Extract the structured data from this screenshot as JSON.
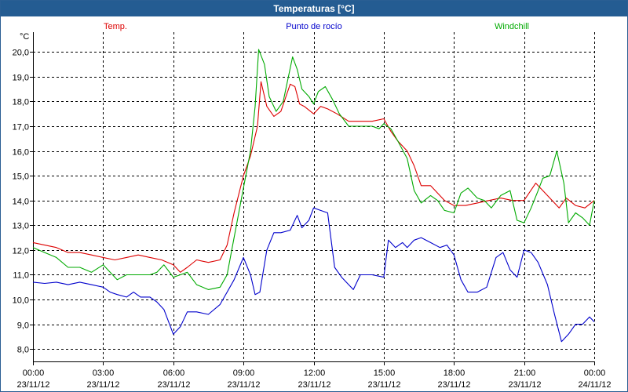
{
  "window": {
    "title": "Temperaturas [°C]"
  },
  "chart_data": {
    "type": "line",
    "title": "Temperaturas [°C]",
    "ylabel": "°C",
    "ylim": [
      7.5,
      20.8
    ],
    "xlim": [
      0,
      24
    ],
    "grid": true,
    "legend_position": "top",
    "y_ticks": [
      {
        "value": 8,
        "label": "8,0"
      },
      {
        "value": 9,
        "label": "9,0"
      },
      {
        "value": 10,
        "label": "10,0"
      },
      {
        "value": 11,
        "label": "11,0"
      },
      {
        "value": 12,
        "label": "12,0"
      },
      {
        "value": 13,
        "label": "13,0"
      },
      {
        "value": 14,
        "label": "14,0"
      },
      {
        "value": 15,
        "label": "15,0"
      },
      {
        "value": 16,
        "label": "16,0"
      },
      {
        "value": 17,
        "label": "17,0"
      },
      {
        "value": 18,
        "label": "18,0"
      },
      {
        "value": 19,
        "label": "19,0"
      },
      {
        "value": 20,
        "label": "20,0"
      }
    ],
    "x_ticks": [
      {
        "value": 0,
        "time": "00:00",
        "date": "23/11/12"
      },
      {
        "value": 3,
        "time": "03:00",
        "date": "23/11/12"
      },
      {
        "value": 6,
        "time": "06:00",
        "date": "23/11/12"
      },
      {
        "value": 9,
        "time": "09:00",
        "date": "23/11/12"
      },
      {
        "value": 12,
        "time": "12:00",
        "date": "23/11/12"
      },
      {
        "value": 15,
        "time": "15:00",
        "date": "23/11/12"
      },
      {
        "value": 18,
        "time": "18:00",
        "date": "23/11/12"
      },
      {
        "value": 21,
        "time": "21:00",
        "date": "23/11/12"
      },
      {
        "value": 24,
        "time": "00:00",
        "date": "24/11/12"
      }
    ],
    "series": [
      {
        "name": "Temp.",
        "color": "#dd0000",
        "points": [
          [
            0,
            12.3
          ],
          [
            0.5,
            12.2
          ],
          [
            1,
            12.1
          ],
          [
            1.5,
            11.9
          ],
          [
            2,
            11.9
          ],
          [
            2.5,
            11.8
          ],
          [
            3,
            11.7
          ],
          [
            3.5,
            11.6
          ],
          [
            4,
            11.7
          ],
          [
            4.5,
            11.8
          ],
          [
            5,
            11.7
          ],
          [
            5.5,
            11.6
          ],
          [
            6,
            11.4
          ],
          [
            6.3,
            11.1
          ],
          [
            6.6,
            11.3
          ],
          [
            7,
            11.6
          ],
          [
            7.5,
            11.5
          ],
          [
            8,
            11.6
          ],
          [
            8.3,
            12.2
          ],
          [
            8.6,
            13.5
          ],
          [
            9,
            15.0
          ],
          [
            9.3,
            15.8
          ],
          [
            9.6,
            17.0
          ],
          [
            9.75,
            18.8
          ],
          [
            10,
            17.8
          ],
          [
            10.3,
            17.4
          ],
          [
            10.6,
            17.6
          ],
          [
            11,
            18.7
          ],
          [
            11.2,
            18.6
          ],
          [
            11.4,
            17.9
          ],
          [
            11.6,
            17.8
          ],
          [
            12,
            17.5
          ],
          [
            12.3,
            17.8
          ],
          [
            12.6,
            17.7
          ],
          [
            13,
            17.5
          ],
          [
            13.5,
            17.2
          ],
          [
            14,
            17.2
          ],
          [
            14.5,
            17.2
          ],
          [
            15,
            17.3
          ],
          [
            15.3,
            16.8
          ],
          [
            15.6,
            16.4
          ],
          [
            16,
            16.0
          ],
          [
            16.3,
            15.4
          ],
          [
            16.6,
            14.6
          ],
          [
            17,
            14.6
          ],
          [
            17.3,
            14.3
          ],
          [
            17.6,
            14.0
          ],
          [
            18,
            13.8
          ],
          [
            18.5,
            13.8
          ],
          [
            19,
            13.9
          ],
          [
            19.5,
            14.0
          ],
          [
            20,
            14.1
          ],
          [
            20.5,
            14.0
          ],
          [
            21,
            14.0
          ],
          [
            21.5,
            14.7
          ],
          [
            22,
            14.2
          ],
          [
            22.5,
            13.7
          ],
          [
            22.8,
            14.1
          ],
          [
            23.2,
            13.8
          ],
          [
            23.6,
            13.7
          ],
          [
            24,
            14.0
          ]
        ]
      },
      {
        "name": "Punto de rocío",
        "color": "#0000cc",
        "points": [
          [
            0,
            10.7
          ],
          [
            0.5,
            10.65
          ],
          [
            1,
            10.7
          ],
          [
            1.5,
            10.6
          ],
          [
            2,
            10.7
          ],
          [
            2.5,
            10.6
          ],
          [
            3,
            10.5
          ],
          [
            3.3,
            10.3
          ],
          [
            3.6,
            10.2
          ],
          [
            4,
            10.1
          ],
          [
            4.3,
            10.3
          ],
          [
            4.6,
            10.1
          ],
          [
            5,
            10.1
          ],
          [
            5.3,
            9.9
          ],
          [
            5.6,
            9.6
          ],
          [
            6,
            8.6
          ],
          [
            6.3,
            8.9
          ],
          [
            6.6,
            9.5
          ],
          [
            7,
            9.5
          ],
          [
            7.5,
            9.4
          ],
          [
            8,
            9.8
          ],
          [
            8.3,
            10.3
          ],
          [
            8.6,
            10.8
          ],
          [
            9,
            11.7
          ],
          [
            9.3,
            11.0
          ],
          [
            9.5,
            10.2
          ],
          [
            9.7,
            10.3
          ],
          [
            10,
            12.0
          ],
          [
            10.3,
            12.7
          ],
          [
            10.6,
            12.7
          ],
          [
            11,
            12.8
          ],
          [
            11.3,
            13.4
          ],
          [
            11.5,
            12.9
          ],
          [
            11.8,
            13.2
          ],
          [
            12,
            13.7
          ],
          [
            12.3,
            13.6
          ],
          [
            12.6,
            13.5
          ],
          [
            12.9,
            11.3
          ],
          [
            13.2,
            10.9
          ],
          [
            13.5,
            10.6
          ],
          [
            13.7,
            10.4
          ],
          [
            14,
            11.0
          ],
          [
            14.5,
            11.0
          ],
          [
            15,
            10.9
          ],
          [
            15.2,
            12.4
          ],
          [
            15.5,
            12.1
          ],
          [
            15.8,
            12.3
          ],
          [
            16,
            12.1
          ],
          [
            16.3,
            12.4
          ],
          [
            16.6,
            12.5
          ],
          [
            17,
            12.3
          ],
          [
            17.4,
            12.1
          ],
          [
            17.7,
            12.2
          ],
          [
            18,
            11.8
          ],
          [
            18.3,
            10.8
          ],
          [
            18.6,
            10.3
          ],
          [
            19,
            10.3
          ],
          [
            19.4,
            10.5
          ],
          [
            19.8,
            11.7
          ],
          [
            20.1,
            11.9
          ],
          [
            20.4,
            11.2
          ],
          [
            20.7,
            10.9
          ],
          [
            21,
            12.0
          ],
          [
            21.3,
            11.9
          ],
          [
            21.6,
            11.5
          ],
          [
            22,
            10.6
          ],
          [
            22.3,
            9.4
          ],
          [
            22.6,
            8.3
          ],
          [
            22.9,
            8.6
          ],
          [
            23.2,
            9.0
          ],
          [
            23.5,
            9.0
          ],
          [
            23.8,
            9.3
          ],
          [
            24,
            9.1
          ]
        ]
      },
      {
        "name": "Windchill",
        "color": "#00aa00",
        "points": [
          [
            0,
            12.1
          ],
          [
            0.5,
            11.9
          ],
          [
            1,
            11.7
          ],
          [
            1.5,
            11.3
          ],
          [
            2,
            11.3
          ],
          [
            2.5,
            11.1
          ],
          [
            3,
            11.4
          ],
          [
            3.3,
            11.1
          ],
          [
            3.6,
            10.8
          ],
          [
            4,
            11.0
          ],
          [
            4.5,
            11.0
          ],
          [
            5,
            11.0
          ],
          [
            5.3,
            11.1
          ],
          [
            5.6,
            11.4
          ],
          [
            6,
            10.9
          ],
          [
            6.3,
            11.0
          ],
          [
            6.6,
            11.1
          ],
          [
            7,
            10.6
          ],
          [
            7.5,
            10.4
          ],
          [
            8,
            10.5
          ],
          [
            8.3,
            11.0
          ],
          [
            8.6,
            12.5
          ],
          [
            9,
            14.5
          ],
          [
            9.3,
            16.0
          ],
          [
            9.5,
            17.8
          ],
          [
            9.65,
            20.1
          ],
          [
            9.9,
            19.5
          ],
          [
            10.1,
            18.2
          ],
          [
            10.4,
            17.6
          ],
          [
            10.7,
            18.0
          ],
          [
            11.1,
            19.8
          ],
          [
            11.3,
            19.3
          ],
          [
            11.5,
            18.5
          ],
          [
            11.8,
            18.2
          ],
          [
            12,
            17.9
          ],
          [
            12.2,
            18.4
          ],
          [
            12.5,
            18.6
          ],
          [
            12.8,
            18.1
          ],
          [
            13.1,
            17.5
          ],
          [
            13.5,
            17.0
          ],
          [
            14,
            17.0
          ],
          [
            14.5,
            17.0
          ],
          [
            14.8,
            16.9
          ],
          [
            15,
            17.1
          ],
          [
            15.3,
            16.9
          ],
          [
            15.6,
            16.4
          ],
          [
            16,
            15.7
          ],
          [
            16.3,
            14.4
          ],
          [
            16.6,
            13.9
          ],
          [
            17,
            14.2
          ],
          [
            17.3,
            14.0
          ],
          [
            17.6,
            13.6
          ],
          [
            18,
            13.5
          ],
          [
            18.3,
            14.3
          ],
          [
            18.6,
            14.5
          ],
          [
            19,
            14.1
          ],
          [
            19.3,
            14.0
          ],
          [
            19.6,
            13.7
          ],
          [
            20,
            14.2
          ],
          [
            20.4,
            14.4
          ],
          [
            20.7,
            13.2
          ],
          [
            21,
            13.1
          ],
          [
            21.3,
            13.7
          ],
          [
            21.6,
            14.4
          ],
          [
            21.8,
            14.9
          ],
          [
            22.1,
            15.0
          ],
          [
            22.4,
            16.0
          ],
          [
            22.7,
            14.7
          ],
          [
            22.9,
            13.1
          ],
          [
            23.2,
            13.5
          ],
          [
            23.5,
            13.3
          ],
          [
            23.8,
            13.0
          ],
          [
            24,
            14.0
          ]
        ]
      }
    ]
  }
}
